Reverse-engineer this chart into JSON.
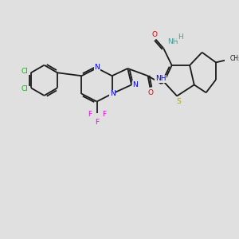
{
  "background_color": "#e0e0e0",
  "bond_color": "#1a1a1a",
  "bond_width": 1.3,
  "colors": {
    "N": "#0000ee",
    "O": "#dd0000",
    "S": "#aaaa00",
    "Cl": "#00bb00",
    "F": "#ee00ee",
    "H": "#4a9a9a",
    "C": "#1a1a1a"
  },
  "font_size": 6.5,
  "xlim": [
    0,
    10
  ],
  "ylim": [
    0,
    10
  ]
}
